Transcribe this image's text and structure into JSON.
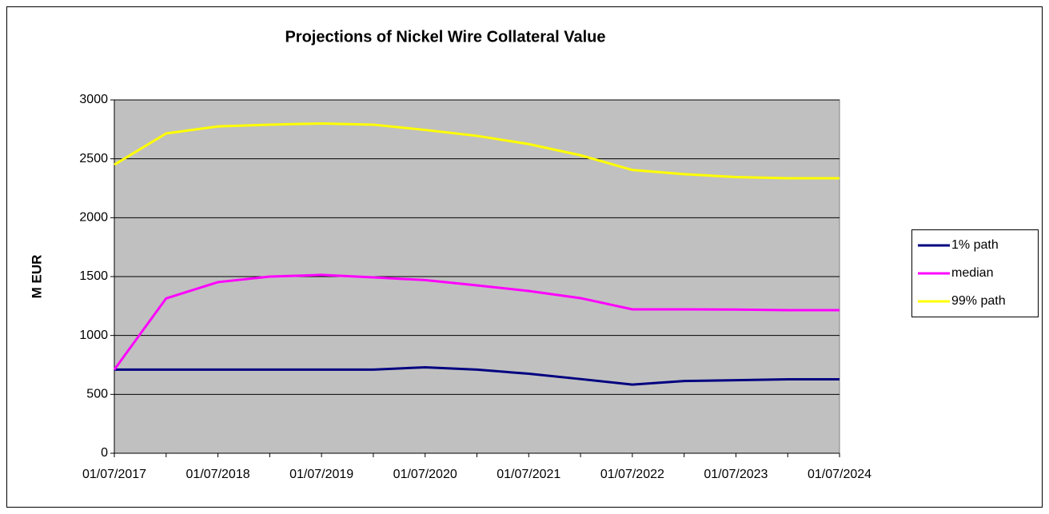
{
  "chart_data": {
    "type": "line",
    "title": "Projections of Nickel Wire Collateral Value",
    "y_label": "M EUR",
    "categories": [
      "01/07/2017",
      null,
      "01/07/2018",
      null,
      "01/07/2019",
      null,
      "01/07/2020",
      null,
      "01/07/2021",
      null,
      "01/07/2022",
      null,
      "01/07/2023",
      null,
      "01/07/2024"
    ],
    "series": [
      {
        "name": "1% path",
        "color": "#000080",
        "values": [
          710,
          710,
          710,
          710,
          710,
          710,
          730,
          710,
          675,
          630,
          583,
          613,
          620,
          628,
          628
        ]
      },
      {
        "name": "median",
        "color": "#ff00ff",
        "values": [
          710,
          1315,
          1453,
          1500,
          1514,
          1493,
          1470,
          1425,
          1378,
          1317,
          1222,
          1222,
          1220,
          1215,
          1215
        ]
      },
      {
        "name": "99% path",
        "color": "#ffff00",
        "values": [
          2450,
          2715,
          2775,
          2790,
          2800,
          2790,
          2745,
          2695,
          2625,
          2530,
          2405,
          2370,
          2345,
          2335,
          2335
        ]
      }
    ],
    "ylim": [
      0,
      3000
    ],
    "yticks": [
      0,
      500,
      1000,
      1500,
      2000,
      2500,
      3000
    ],
    "grid": true,
    "legend": "right"
  }
}
